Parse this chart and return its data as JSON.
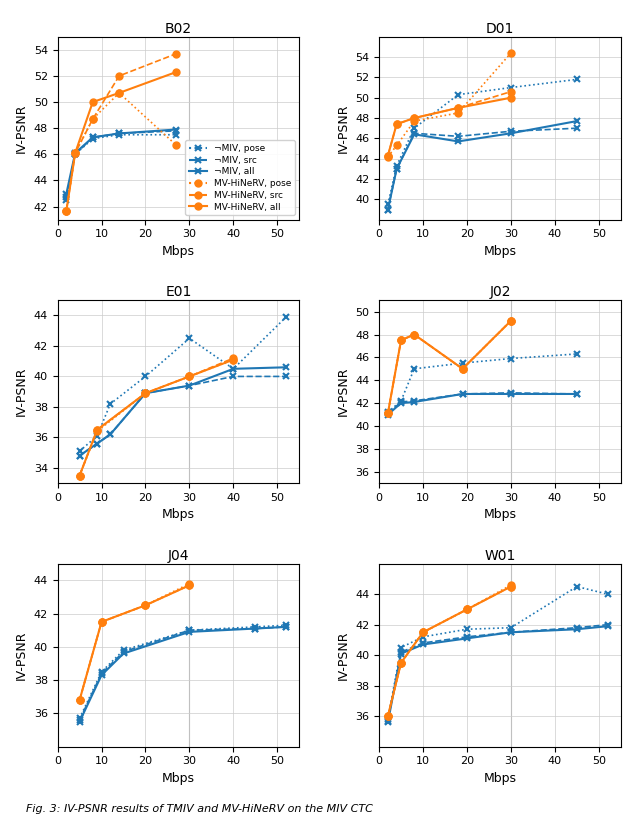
{
  "subplots": [
    {
      "title": "B02",
      "ylim": [
        41,
        55
      ],
      "yticks": [
        42,
        44,
        46,
        48,
        50,
        52,
        54
      ],
      "xlim": [
        0,
        55
      ],
      "xticks": [
        0,
        10,
        20,
        30,
        40,
        50
      ],
      "vline": 30,
      "tmiv_pose": {
        "x": [
          2,
          4,
          8,
          14,
          27
        ],
        "y": [
          42.5,
          46.0,
          47.2,
          47.5,
          47.5
        ]
      },
      "tmiv_src": {
        "x": [
          2,
          4,
          8,
          14,
          27
        ],
        "y": [
          42.7,
          46.0,
          47.3,
          47.6,
          47.8
        ]
      },
      "tmiv_all": {
        "x": [
          2,
          4,
          8,
          14,
          27
        ],
        "y": [
          43.0,
          46.1,
          47.3,
          47.6,
          47.9
        ]
      },
      "mv_pose": {
        "x": [
          2,
          4,
          8,
          14,
          27
        ],
        "y": [
          41.7,
          46.1,
          48.7,
          50.7,
          46.7
        ]
      },
      "mv_src": {
        "x": [
          2,
          4,
          8,
          14,
          27
        ],
        "y": [
          41.7,
          46.1,
          48.7,
          52.0,
          53.7
        ]
      },
      "mv_all": {
        "x": [
          2,
          4,
          8,
          14,
          27
        ],
        "y": [
          41.7,
          46.1,
          50.0,
          50.7,
          52.3
        ]
      }
    },
    {
      "title": "D01",
      "ylim": [
        38,
        56
      ],
      "yticks": [
        40,
        42,
        44,
        46,
        48,
        50,
        52,
        54
      ],
      "xlim": [
        0,
        55
      ],
      "xticks": [
        0,
        10,
        20,
        30,
        40,
        50
      ],
      "vline": 30,
      "tmiv_pose": {
        "x": [
          2,
          4,
          8,
          18,
          30,
          45
        ],
        "y": [
          39.5,
          43.3,
          47.0,
          50.3,
          51.0,
          51.8
        ]
      },
      "tmiv_src": {
        "x": [
          2,
          4,
          8,
          18,
          30,
          45
        ],
        "y": [
          39.0,
          43.0,
          46.5,
          46.2,
          46.7,
          47.0
        ]
      },
      "tmiv_all": {
        "x": [
          2,
          4,
          8,
          18,
          30,
          45
        ],
        "y": [
          39.0,
          43.0,
          46.4,
          45.7,
          46.5,
          47.7
        ]
      },
      "mv_pose": {
        "x": [
          2,
          4,
          8,
          18,
          30
        ],
        "y": [
          44.2,
          45.3,
          47.7,
          48.5,
          54.4
        ]
      },
      "mv_src": {
        "x": [
          2,
          4,
          8,
          18,
          30
        ],
        "y": [
          44.3,
          47.4,
          48.0,
          49.0,
          50.6
        ]
      },
      "mv_all": {
        "x": [
          2,
          4,
          8,
          18,
          30
        ],
        "y": [
          44.3,
          47.4,
          48.0,
          49.0,
          50.0
        ]
      }
    },
    {
      "title": "E01",
      "ylim": [
        33,
        45
      ],
      "yticks": [
        34,
        36,
        38,
        40,
        42,
        44
      ],
      "xlim": [
        0,
        55
      ],
      "xticks": [
        0,
        10,
        20,
        30,
        40,
        50
      ],
      "vline": 30,
      "tmiv_pose": {
        "x": [
          5,
          9,
          12,
          20,
          30,
          40,
          52
        ],
        "y": [
          35.1,
          36.1,
          38.2,
          40.0,
          42.5,
          40.5,
          43.9
        ]
      },
      "tmiv_src": {
        "x": [
          5,
          9,
          12,
          20,
          30,
          40,
          52
        ],
        "y": [
          34.8,
          35.6,
          36.2,
          38.9,
          39.4,
          40.0,
          40.0
        ]
      },
      "tmiv_all": {
        "x": [
          5,
          9,
          12,
          20,
          30,
          40,
          52
        ],
        "y": [
          34.8,
          35.6,
          36.2,
          38.9,
          39.4,
          40.5,
          40.6
        ]
      },
      "mv_pose": {
        "x": [
          5,
          9,
          20,
          30,
          40
        ],
        "y": [
          33.5,
          36.4,
          38.9,
          40.0,
          41.1
        ]
      },
      "mv_src": {
        "x": [
          5,
          9,
          20,
          30,
          40
        ],
        "y": [
          33.5,
          36.5,
          38.9,
          40.0,
          41.2
        ]
      },
      "mv_all": {
        "x": [
          5,
          9,
          20,
          30,
          40
        ],
        "y": [
          33.5,
          36.5,
          38.9,
          40.0,
          41.1
        ]
      }
    },
    {
      "title": "J02",
      "ylim": [
        35,
        51
      ],
      "yticks": [
        36,
        38,
        40,
        42,
        44,
        46,
        48,
        50
      ],
      "xlim": [
        0,
        55
      ],
      "xticks": [
        0,
        10,
        20,
        30,
        40,
        50
      ],
      "vline": 30,
      "tmiv_pose": {
        "x": [
          2,
          5,
          8,
          19,
          30,
          45
        ],
        "y": [
          41.2,
          42.2,
          45.0,
          45.5,
          45.9,
          46.3
        ]
      },
      "tmiv_src": {
        "x": [
          2,
          5,
          8,
          19,
          30,
          45
        ],
        "y": [
          41.1,
          42.1,
          42.2,
          42.8,
          42.9,
          42.8
        ]
      },
      "tmiv_all": {
        "x": [
          2,
          5,
          8,
          19,
          30,
          45
        ],
        "y": [
          41.0,
          42.0,
          42.1,
          42.8,
          42.8,
          42.8
        ]
      },
      "mv_pose": {
        "x": [
          2,
          5,
          8,
          19,
          30
        ],
        "y": [
          41.1,
          47.5,
          48.0,
          45.0,
          49.2
        ]
      },
      "mv_src": {
        "x": [
          2,
          5,
          8,
          19,
          30
        ],
        "y": [
          41.1,
          47.5,
          48.0,
          45.0,
          49.2
        ]
      },
      "mv_all": {
        "x": [
          2,
          5,
          8,
          19,
          30
        ],
        "y": [
          41.1,
          47.5,
          48.0,
          45.0,
          49.2
        ]
      }
    },
    {
      "title": "J04",
      "ylim": [
        34,
        45
      ],
      "yticks": [
        36,
        38,
        40,
        42,
        44
      ],
      "xlim": [
        0,
        55
      ],
      "xticks": [
        0,
        10,
        20,
        30,
        40,
        50
      ],
      "vline": 30,
      "tmiv_pose": {
        "x": [
          5,
          10,
          15,
          30,
          45,
          52
        ],
        "y": [
          35.7,
          38.5,
          39.8,
          41.0,
          41.2,
          41.3
        ]
      },
      "tmiv_src": {
        "x": [
          5,
          10,
          15,
          30,
          45,
          52
        ],
        "y": [
          35.6,
          38.4,
          39.7,
          41.0,
          41.1,
          41.2
        ]
      },
      "tmiv_all": {
        "x": [
          5,
          10,
          15,
          30,
          45,
          52
        ],
        "y": [
          35.5,
          38.3,
          39.6,
          40.9,
          41.1,
          41.2
        ]
      },
      "mv_pose": {
        "x": [
          5,
          10,
          20,
          30
        ],
        "y": [
          36.8,
          41.5,
          42.5,
          43.8
        ]
      },
      "mv_src": {
        "x": [
          5,
          10,
          20,
          30
        ],
        "y": [
          36.8,
          41.5,
          42.5,
          43.7
        ]
      },
      "mv_all": {
        "x": [
          5,
          10,
          20,
          30
        ],
        "y": [
          36.8,
          41.5,
          42.5,
          43.7
        ]
      }
    },
    {
      "title": "W01",
      "ylim": [
        34,
        46
      ],
      "yticks": [
        36,
        38,
        40,
        42,
        44
      ],
      "xlim": [
        0,
        55
      ],
      "xticks": [
        0,
        10,
        20,
        30,
        40,
        50
      ],
      "vline": 30,
      "tmiv_pose": {
        "x": [
          2,
          5,
          10,
          20,
          30,
          45,
          52
        ],
        "y": [
          35.8,
          40.5,
          41.2,
          41.7,
          41.8,
          44.5,
          44.0
        ]
      },
      "tmiv_src": {
        "x": [
          2,
          5,
          10,
          20,
          30,
          45,
          52
        ],
        "y": [
          35.7,
          40.2,
          40.8,
          41.2,
          41.5,
          41.8,
          42.0
        ]
      },
      "tmiv_all": {
        "x": [
          2,
          5,
          10,
          20,
          30,
          45,
          52
        ],
        "y": [
          35.6,
          40.1,
          40.7,
          41.1,
          41.5,
          41.7,
          41.9
        ]
      },
      "mv_pose": {
        "x": [
          2,
          5,
          10,
          20,
          30
        ],
        "y": [
          36.0,
          39.5,
          41.5,
          43.0,
          44.6
        ]
      },
      "mv_src": {
        "x": [
          2,
          5,
          10,
          20,
          30
        ],
        "y": [
          36.0,
          39.5,
          41.5,
          43.0,
          44.5
        ]
      },
      "mv_all": {
        "x": [
          2,
          5,
          10,
          20,
          30
        ],
        "y": [
          36.0,
          39.5,
          41.5,
          43.0,
          44.5
        ]
      }
    }
  ],
  "blue_color": "#1f77b4",
  "orange_color": "#ff7f0e",
  "legend_labels": [
    "¬MIV, pose",
    "¬MIV, src",
    "¬MIV, all",
    "MV-HiNeRV, pose",
    "MV-HiNeRV, src",
    "MV-HiNeRV, all"
  ],
  "ylabel": "IV-PSNR",
  "xlabel": "Mbps",
  "caption": "Fig. 3: IV-PSNR results of TMIV and MV-HiNeRV on the MIV CTC"
}
